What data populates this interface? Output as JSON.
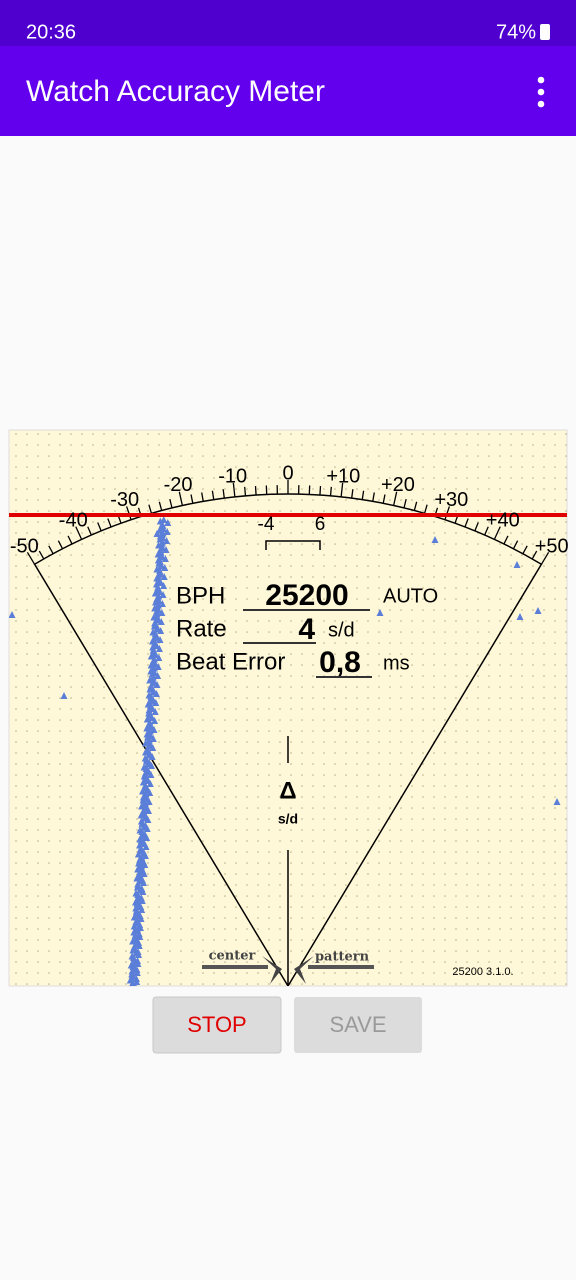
{
  "status_bar": {
    "time": "20:36",
    "battery": "74%"
  },
  "app_bar": {
    "title": "Watch Accuracy Meter"
  },
  "meter": {
    "dial_labels": [
      "-50",
      "-40",
      "-30",
      "-20",
      "-10",
      "0",
      "+10",
      "+20",
      "+30",
      "+40",
      "+50"
    ],
    "marker_labels": [
      "-4",
      "6"
    ],
    "bph_label": "BPH",
    "bph": "25200",
    "bph_mode": "AUTO",
    "rate_label": "Rate",
    "rate": "4",
    "rate_unit": "s/d",
    "beat_error_label": "Beat Error",
    "beat_error": "0,8",
    "beat_error_unit": "ms",
    "delta_symbol": "Δ",
    "delta_unit": "s/d",
    "center_label": "center",
    "pattern_label": "pattern",
    "version": "25200 3.1.0."
  },
  "buttons": {
    "stop": "STOP",
    "save": "SAVE"
  }
}
